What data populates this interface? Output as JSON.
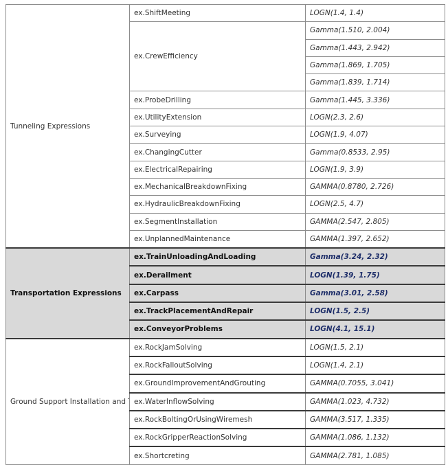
{
  "sections": [
    {
      "label": "Tunneling Expressions",
      "rows": [
        {
          "name": "ex.ShiftMeeting",
          "dist": [
            "LOGN(1.4, 1.4)"
          ]
        },
        {
          "name": "ex.CrewEfficiency",
          "dist": [
            "Gamma(1.510, 2.004)",
            "Gamma(1.443, 2.942)",
            "Gamma(1.869, 1.705)",
            "Gamma(1.839, 1.714)"
          ]
        },
        {
          "name": "ex.ProbeDrilling",
          "dist": [
            "Gamma(1.445, 3.336)"
          ]
        },
        {
          "name": "ex.UtilityExtension",
          "dist": [
            "LOGN(2.3, 2.6)"
          ]
        },
        {
          "name": "ex.Surveying",
          "dist": [
            "LOGN(1.9, 4.07)"
          ]
        },
        {
          "name": "ex.ChangingCutter",
          "dist": [
            "Gamma(0.8533, 2.95)"
          ]
        },
        {
          "name": "ex.ElectricalRepairing",
          "dist": [
            "LOGN(1.9, 3.9)"
          ]
        },
        {
          "name": "ex.MechanicalBreakdownFixing",
          "dist": [
            "GAMMA(0.8780, 2.726)"
          ]
        },
        {
          "name": "ex.HydraulicBreakdownFixing",
          "dist": [
            "LOGN(2.5, 4.7)"
          ]
        },
        {
          "name": "ex.SegmentInstallation",
          "dist": [
            "GAMMA(2.547, 2.805)"
          ]
        },
        {
          "name": "ex.UnplannedMaintenance",
          "dist": [
            "GAMMA(1.397, 2.652)"
          ]
        }
      ]
    },
    {
      "label": "Transportation Expressions",
      "rows": [
        {
          "name": "ex.TrainUnloadingAndLoading",
          "dist": [
            "Gamma(3.24, 2.32)"
          ]
        },
        {
          "name": "ex.Derailment",
          "dist": [
            "LOGN(1.39, 1.75)"
          ]
        },
        {
          "name": "ex.Carpass",
          "dist": [
            "Gamma(3.01, 2.58)"
          ]
        },
        {
          "name": "ex.TrackPlacementAndRepair",
          "dist": [
            "LOGN(1.5, 2.5)"
          ]
        },
        {
          "name": "ex.ConveyorProblems",
          "dist": [
            "LOGN(4.1, 15.1)"
          ]
        }
      ]
    },
    {
      "label": "Ground Support Installation and Troubleshooting Expressions",
      "rows": [
        {
          "name": "ex.RockJamSolving",
          "dist": [
            "LOGN(1.5, 2.1)"
          ]
        },
        {
          "name": "ex.RockFalloutSolving",
          "dist": [
            "LOGN(1.4, 2.1)"
          ]
        },
        {
          "name": "ex.GroundImprovementAndGrouting",
          "dist": [
            "GAMMA(0.7055, 3.041)"
          ]
        },
        {
          "name": "ex.WaterInflowSolving",
          "dist": [
            "GAMMA(1.023, 4.732)"
          ]
        },
        {
          "name": "ex.RockBoltingOrUsingWiremesh",
          "dist": [
            "GAMMA(3.517, 1.335)"
          ]
        },
        {
          "name": "ex.RockGripperReactionSolving",
          "dist": [
            "GAMMA(1.086, 1.132)"
          ]
        },
        {
          "name": "ex.Shortcreting",
          "dist": [
            "GAMMA(2.781, 1.085)"
          ]
        }
      ]
    }
  ],
  "highlight_section_index": 1,
  "colors": {
    "highlight_fill": "#d9d9d9",
    "distribution_text": "#3c4f93",
    "border": "#8c8c8c"
  }
}
